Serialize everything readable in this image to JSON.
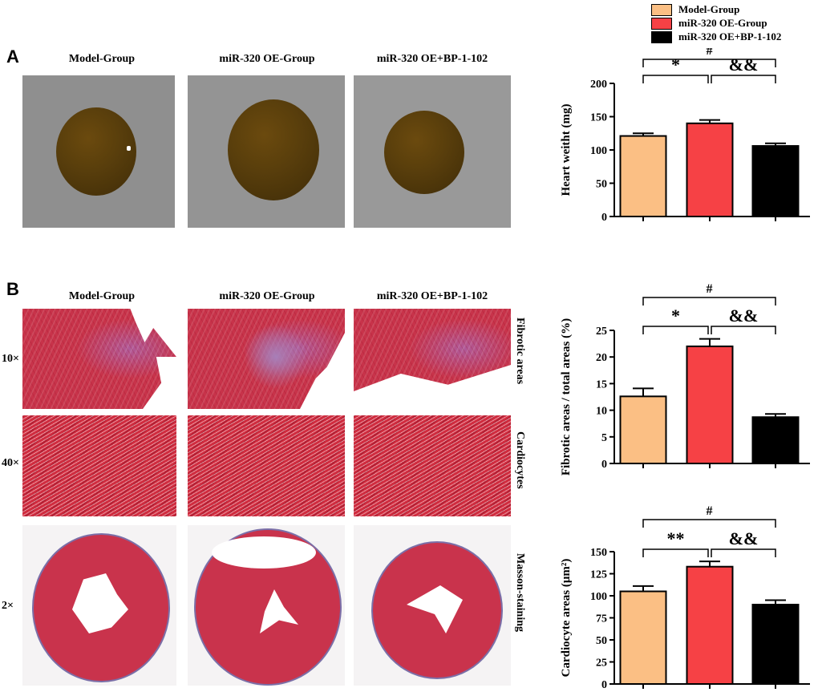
{
  "legend": [
    {
      "label": "Model-Group",
      "color": "#fbbf84"
    },
    {
      "label": "miR-320 OE-Group",
      "color": "#f64145"
    },
    {
      "label": "miR-320 OE+BP-1-102",
      "color": "#000000"
    }
  ],
  "panelA": {
    "letter": "A",
    "col_titles": [
      "Model-Group",
      "miR-320 OE-Group",
      "miR-320 OE+BP-1-102"
    ]
  },
  "panelB": {
    "letter": "B",
    "col_titles": [
      "Model-Group",
      "miR-320 OE-Group",
      "miR-320 OE+BP-1-102"
    ],
    "row_magnifications": [
      "10×",
      "40×",
      "2×"
    ],
    "row_side_labels": [
      "Fibrotic areas",
      "Cardiocytes",
      "Masson-staining"
    ]
  },
  "chart_data": [
    {
      "type": "bar",
      "categories": [
        "Model-Group",
        "miR-320 OE-Group",
        "miR-320 OE+BP-1-102"
      ],
      "values": [
        121,
        140,
        106
      ],
      "errors": [
        4,
        5,
        4
      ],
      "ylabel": "Heart weitht (mg)",
      "ylim": [
        0,
        200
      ],
      "yticks": [
        "0",
        "50",
        "100",
        "150",
        "200"
      ],
      "significance": [
        "*",
        "&&",
        "#"
      ]
    },
    {
      "type": "bar",
      "categories": [
        "Model-Group",
        "miR-320 OE-Group",
        "miR-320 OE+BP-1-102"
      ],
      "values": [
        12.6,
        22.0,
        8.7
      ],
      "errors": [
        1.5,
        1.4,
        0.6
      ],
      "ylabel": "Fibrotic areas / total areas (%)",
      "ylim": [
        0,
        25
      ],
      "yticks": [
        "0",
        "5",
        "10",
        "15",
        "20",
        "25"
      ],
      "significance": [
        "*",
        "&&",
        "#"
      ]
    },
    {
      "type": "bar",
      "categories": [
        "Model-Group",
        "miR-320 OE-Group",
        "miR-320 OE+BP-1-102"
      ],
      "values": [
        105,
        133,
        90
      ],
      "errors": [
        6,
        6,
        5
      ],
      "ylabel": "Cardiocyte areas (μm²)",
      "ylim": [
        0,
        150
      ],
      "yticks": [
        "0",
        "25",
        "50",
        "75",
        "100",
        "125",
        "150"
      ],
      "significance": [
        "**",
        "&&",
        "#"
      ]
    }
  ]
}
